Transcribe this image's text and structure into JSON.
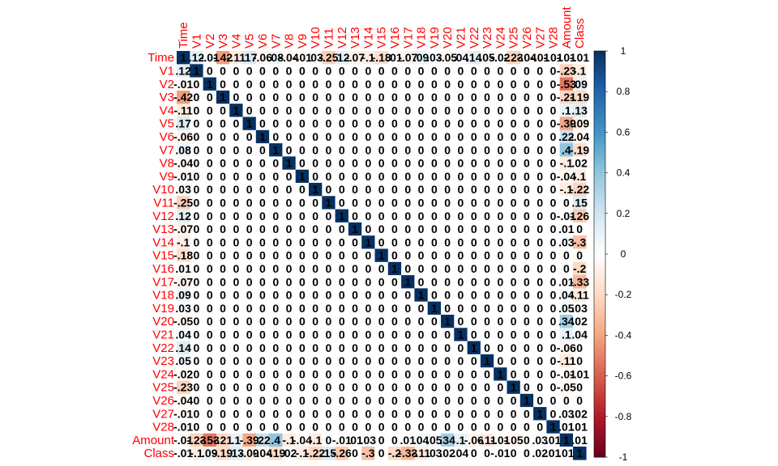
{
  "chart_data": {
    "type": "heatmap",
    "title": "",
    "variables": [
      "Time",
      "V1",
      "V2",
      "V3",
      "V4",
      "V5",
      "V6",
      "V7",
      "V8",
      "V9",
      "V10",
      "V11",
      "V12",
      "V13",
      "V14",
      "V15",
      "V16",
      "V17",
      "V18",
      "V19",
      "V20",
      "V21",
      "V22",
      "V23",
      "V24",
      "V25",
      "V26",
      "V27",
      "V28",
      "Amount",
      "Class"
    ],
    "time_row": [
      1,
      0.12,
      -0.01,
      -0.42,
      -0.11,
      0.17,
      -0.06,
      0.08,
      -0.04,
      -0.01,
      0.03,
      -0.25,
      0.12,
      -0.07,
      -0.1,
      -0.18,
      0.01,
      -0.07,
      0.09,
      0.03,
      -0.05,
      0.04,
      0.14,
      0.05,
      -0.02,
      -0.23,
      -0.04,
      -0.01,
      -0.01,
      -0.01,
      -0.01
    ],
    "amount_row": [
      -0.01,
      -0.23,
      -0.53,
      -0.21,
      0.1,
      -0.39,
      0.22,
      0.4,
      -0.1,
      -0.04,
      -0.1,
      0,
      -0.01,
      0.01,
      0.03,
      0,
      0,
      0.01,
      0.04,
      0.05,
      0.34,
      0.1,
      -0.06,
      -0.11,
      -0.01,
      -0.05,
      0,
      0.03,
      0.01,
      1,
      0.01
    ],
    "class_row": [
      -0.01,
      -0.1,
      0.09,
      -0.19,
      0.13,
      -0.09,
      -0.04,
      -0.19,
      0.02,
      -0.1,
      -0.22,
      0.15,
      -0.26,
      0,
      -0.3,
      0,
      -0.2,
      -0.33,
      -0.11,
      0.03,
      0.02,
      0.04,
      0,
      0,
      -0.01,
      0,
      0,
      0.02,
      0.01,
      0.01,
      1
    ],
    "diagonal_label": "1",
    "off_diagonal_zero_label": "0",
    "colorbar": {
      "ticks": [
        "1",
        "0.8",
        "0.6",
        "0.4",
        "0.2",
        "0",
        "-0.2",
        "-0.4",
        "-0.6",
        "-0.8",
        "-1"
      ],
      "range": [
        -1,
        1
      ],
      "low_color": "#67001f",
      "mid_color": "#ffffff",
      "high_color": "#053061"
    },
    "label_color": "#ff0000",
    "grid": false
  }
}
